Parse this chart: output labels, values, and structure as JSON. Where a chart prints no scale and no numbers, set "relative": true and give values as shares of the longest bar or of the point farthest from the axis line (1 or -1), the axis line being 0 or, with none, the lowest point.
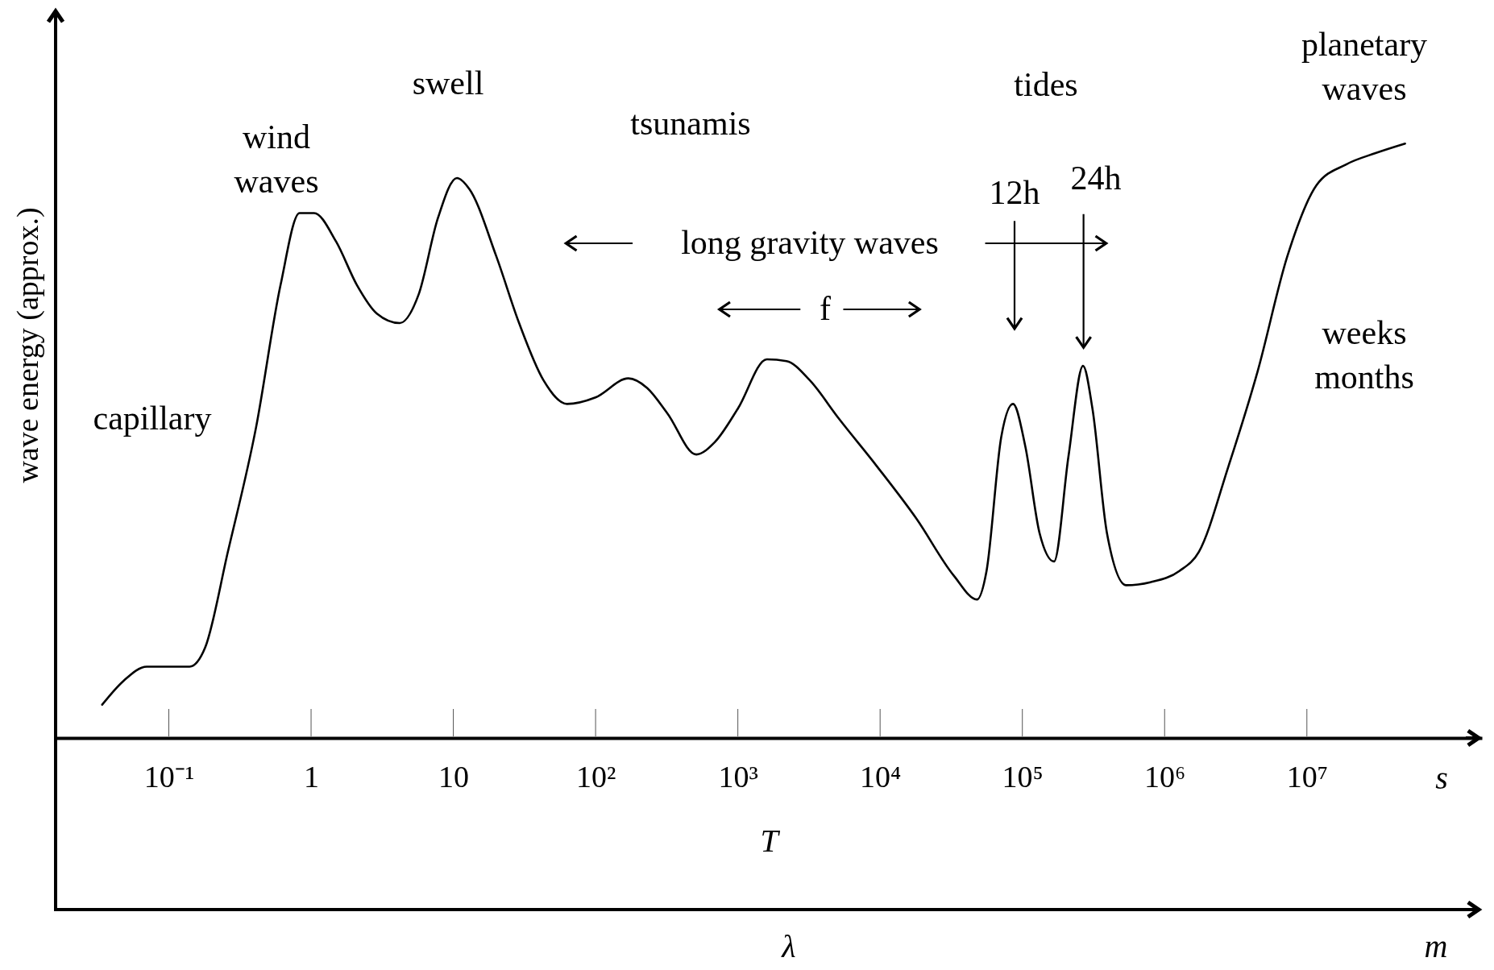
{
  "chart_data": {
    "type": "line",
    "relative": true,
    "log": "x",
    "marker": "none",
    "line_style": "solid",
    "grid": false,
    "ylabel": "wave energy (approx.)",
    "xlabel": "T",
    "xlim": [
      0.016,
      170000000
    ],
    "xticks": [
      {
        "value": 0.1,
        "label": "10⁻¹"
      },
      1,
      10,
      {
        "value": 100,
        "label": "10²"
      },
      {
        "value": 1000,
        "label": "10³"
      },
      {
        "value": 10000,
        "label": "10⁴"
      },
      {
        "value": 100000,
        "label": "10⁵"
      },
      {
        "value": 1000000,
        "label": "10⁶"
      },
      {
        "value": 10000000,
        "label": "10⁷"
      }
    ],
    "series": [
      {
        "color": "#000000",
        "x": [
          0.034,
          0.048,
          0.07,
          0.1,
          0.14,
          0.18,
          0.26,
          0.41,
          0.61,
          0.83,
          1.05,
          1.5,
          2.1,
          2.9,
          4.2,
          5.7,
          7.8,
          10.6,
          13,
          20,
          29,
          43,
          63,
          100,
          170,
          230,
          320,
          510,
          690,
          1000,
          1600,
          2200,
          3200,
          5100,
          9500,
          18000,
          33000,
          48000,
          56000,
          71000,
          86000,
          105000,
          132000,
          167000,
          211000,
          267000,
          311000,
          393000,
          537000,
          793000,
          1270000,
          1740000,
          2810000,
          4520000,
          7280000,
          11700000,
          18900000,
          30400000,
          49000000
        ],
        "values": [
          0.056,
          0.096,
          0.12,
          0.12,
          0.12,
          0.152,
          0.313,
          0.522,
          0.762,
          0.883,
          0.883,
          0.835,
          0.762,
          0.714,
          0.698,
          0.746,
          0.875,
          0.942,
          0.923,
          0.811,
          0.698,
          0.602,
          0.562,
          0.573,
          0.605,
          0.589,
          0.546,
          0.477,
          0.498,
          0.554,
          0.637,
          0.634,
          0.602,
          0.538,
          0.457,
          0.369,
          0.273,
          0.233,
          0.281,
          0.506,
          0.562,
          0.49,
          0.345,
          0.297,
          0.474,
          0.626,
          0.554,
          0.345,
          0.257,
          0.262,
          0.281,
          0.313,
          0.457,
          0.618,
          0.81,
          0.93,
          0.965,
          0.984,
          1
        ]
      }
    ],
    "annotations": [
      "capillary",
      "wind\nwaves",
      "swell",
      "tsunamis",
      "tides",
      "planetary\nwaves",
      "long gravity waves",
      "f",
      "12h",
      "24h",
      "weeks\nmonths",
      "s",
      "λ",
      "m"
    ]
  }
}
